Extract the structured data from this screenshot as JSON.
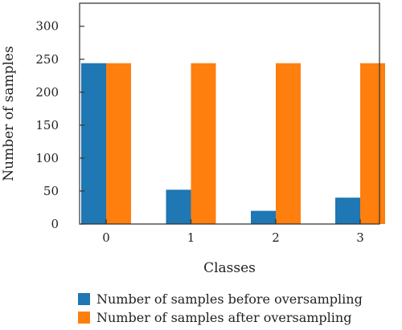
{
  "chart_data": {
    "type": "bar",
    "categories": [
      "0",
      "1",
      "2",
      "3"
    ],
    "series": [
      {
        "name": "Number of samples before oversampling",
        "values": [
          244,
          52,
          20,
          40
        ],
        "color": "#1f77b4"
      },
      {
        "name": "Number of samples after oversampling",
        "values": [
          244,
          244,
          244,
          244
        ],
        "color": "#ff7f0e"
      }
    ],
    "title": "",
    "xlabel": "Classes",
    "ylabel": "Number of samples",
    "ylim": [
      0,
      335
    ],
    "yticks": [
      0,
      50,
      100,
      150,
      200,
      250,
      300
    ],
    "grid": false,
    "legend_position": "bottom"
  }
}
